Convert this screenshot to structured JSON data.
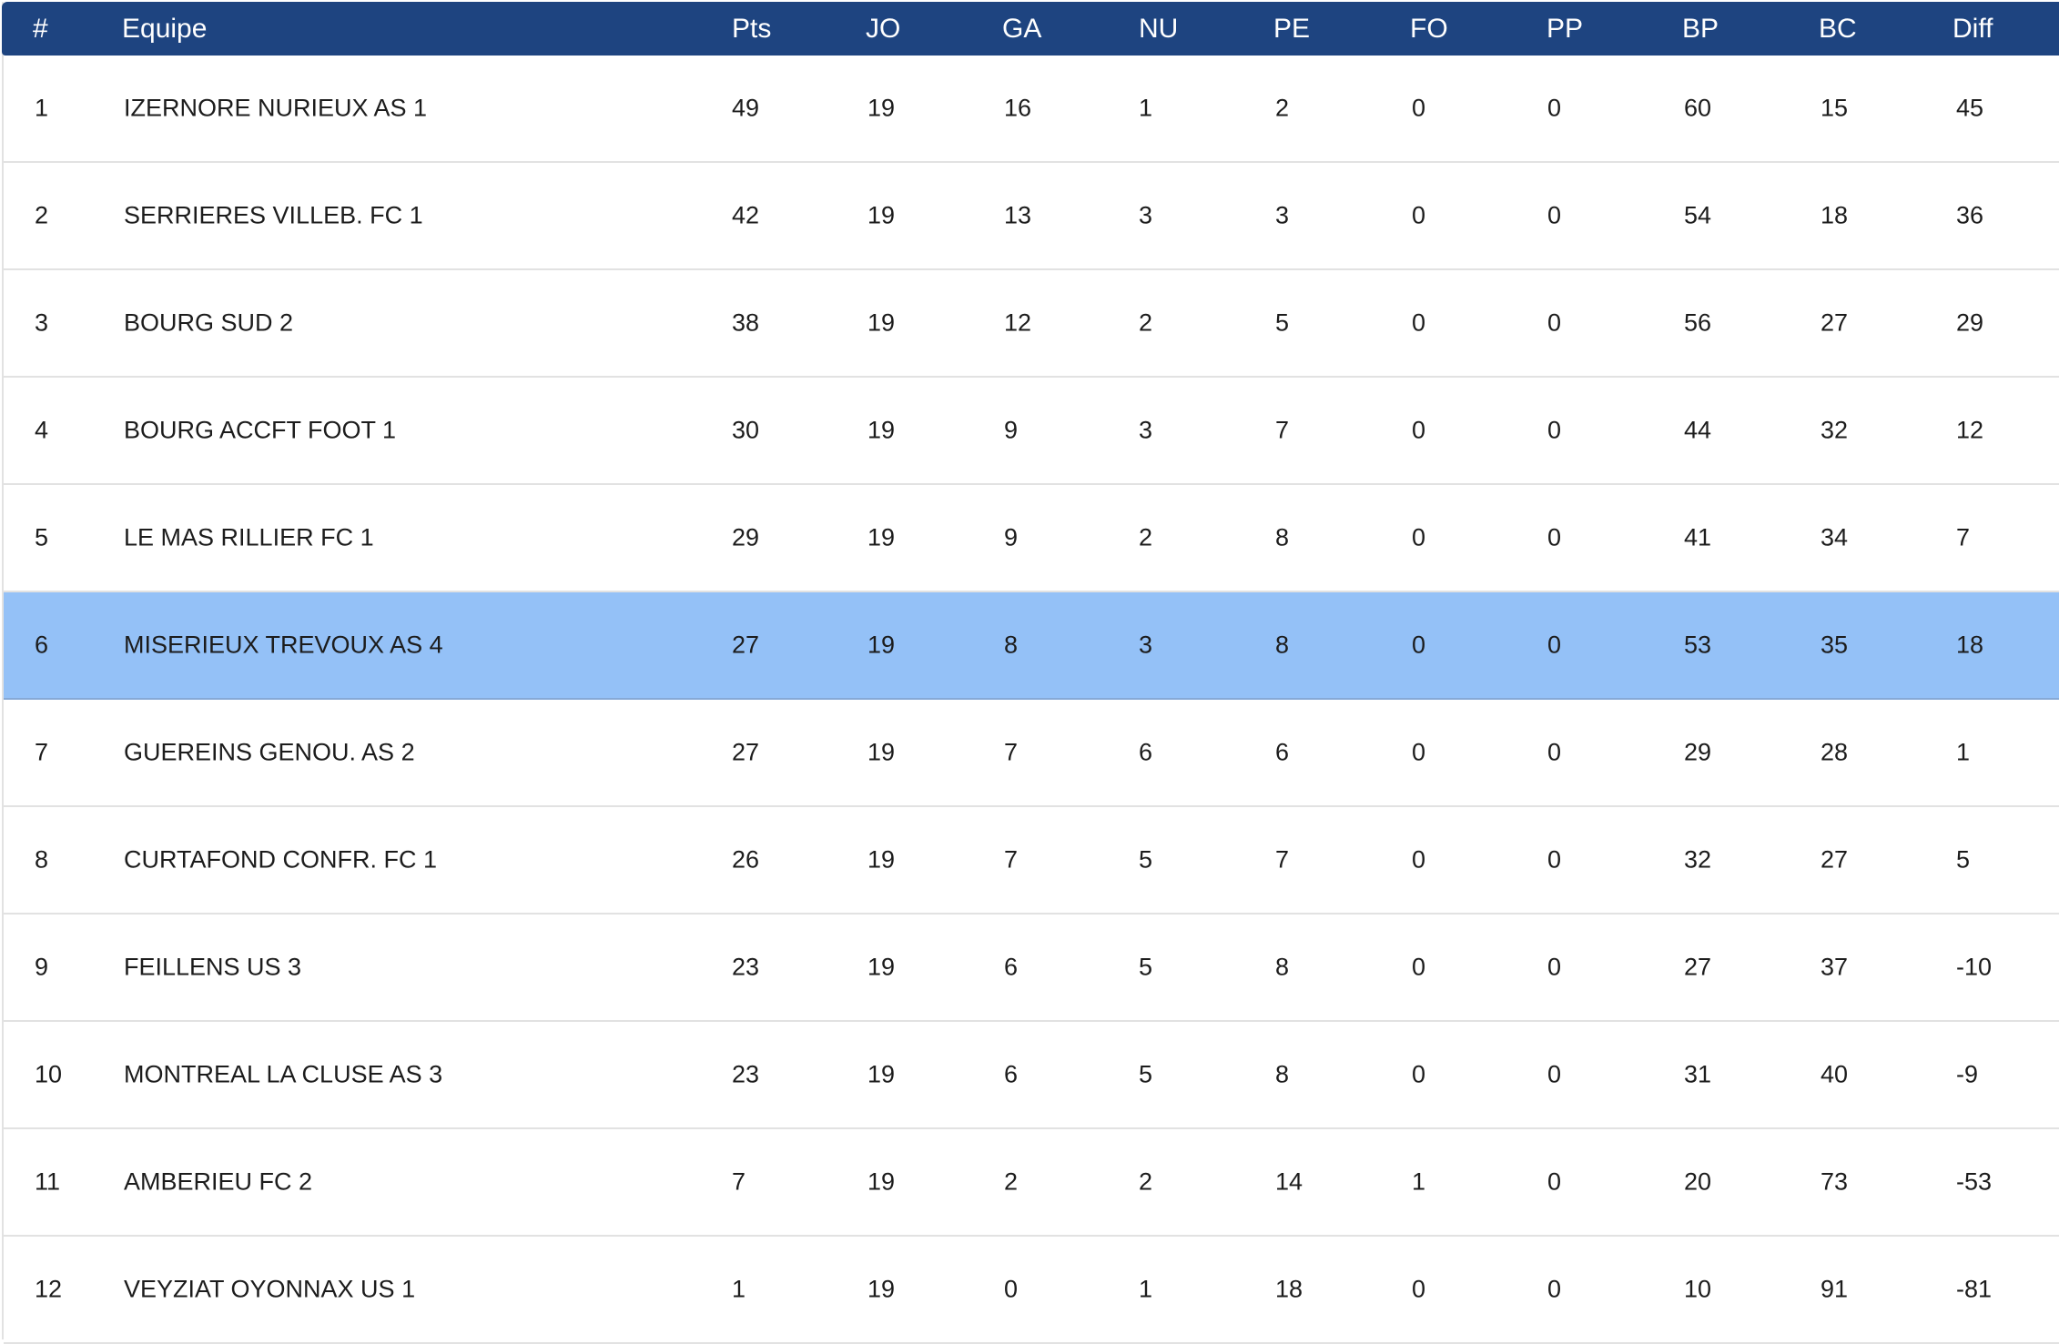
{
  "table": {
    "columns": [
      "#",
      "Equipe",
      "Pts",
      "JO",
      "GA",
      "NU",
      "PE",
      "FO",
      "PP",
      "BP",
      "BC",
      "Diff"
    ],
    "highlighted_rank": "6",
    "colors": {
      "header_bg": "#1e4480",
      "highlight_bg": "#94c1f7",
      "row_border": "#e2e2e2"
    },
    "rows": [
      [
        "1",
        "IZERNORE NURIEUX AS 1",
        "49",
        "19",
        "16",
        "1",
        "2",
        "0",
        "0",
        "60",
        "15",
        "45"
      ],
      [
        "2",
        "SERRIERES VILLEB. FC 1",
        "42",
        "19",
        "13",
        "3",
        "3",
        "0",
        "0",
        "54",
        "18",
        "36"
      ],
      [
        "3",
        "BOURG SUD 2",
        "38",
        "19",
        "12",
        "2",
        "5",
        "0",
        "0",
        "56",
        "27",
        "29"
      ],
      [
        "4",
        "BOURG ACCFT FOOT 1",
        "30",
        "19",
        "9",
        "3",
        "7",
        "0",
        "0",
        "44",
        "32",
        "12"
      ],
      [
        "5",
        "LE MAS RILLIER FC 1",
        "29",
        "19",
        "9",
        "2",
        "8",
        "0",
        "0",
        "41",
        "34",
        "7"
      ],
      [
        "6",
        "MISERIEUX TREVOUX AS 4",
        "27",
        "19",
        "8",
        "3",
        "8",
        "0",
        "0",
        "53",
        "35",
        "18"
      ],
      [
        "7",
        "GUEREINS GENOU. AS 2",
        "27",
        "19",
        "7",
        "6",
        "6",
        "0",
        "0",
        "29",
        "28",
        "1"
      ],
      [
        "8",
        "CURTAFOND CONFR. FC 1",
        "26",
        "19",
        "7",
        "5",
        "7",
        "0",
        "0",
        "32",
        "27",
        "5"
      ],
      [
        "9",
        "FEILLENS US 3",
        "23",
        "19",
        "6",
        "5",
        "8",
        "0",
        "0",
        "27",
        "37",
        "-10"
      ],
      [
        "10",
        "MONTREAL LA CLUSE AS 3",
        "23",
        "19",
        "6",
        "5",
        "8",
        "0",
        "0",
        "31",
        "40",
        "-9"
      ],
      [
        "11",
        "AMBERIEU FC 2",
        "7",
        "19",
        "2",
        "2",
        "14",
        "1",
        "0",
        "20",
        "73",
        "-53"
      ],
      [
        "12",
        "VEYZIAT OYONNAX US 1",
        "1",
        "19",
        "0",
        "1",
        "18",
        "0",
        "0",
        "10",
        "91",
        "-81"
      ]
    ]
  }
}
